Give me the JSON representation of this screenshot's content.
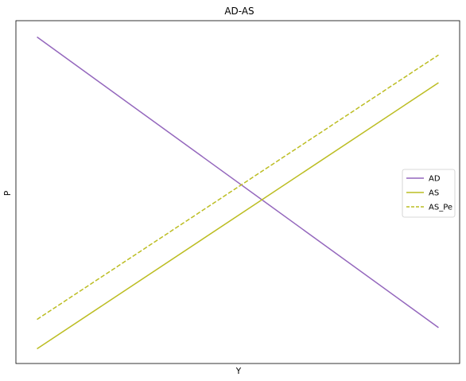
{
  "chart_data": {
    "type": "line",
    "title": "AD-AS",
    "xlabel": "Y",
    "ylabel": "P",
    "xlim": [
      0,
      10.5
    ],
    "ylim": [
      0,
      10.5
    ],
    "grid": false,
    "ticks_shown": false,
    "legend_placement": "center-right",
    "series": [
      {
        "name": "AD",
        "color": "#9467bd",
        "linestyle": "solid",
        "x": [
          0.5,
          10.0
        ],
        "y": [
          10.0,
          1.1
        ]
      },
      {
        "name": "AS",
        "color": "#bcbd22",
        "linestyle": "solid",
        "x": [
          0.5,
          10.0
        ],
        "y": [
          0.45,
          8.6
        ]
      },
      {
        "name": "AS_Pe",
        "color": "#bcbd22",
        "linestyle": "dashed",
        "x": [
          0.5,
          10.0
        ],
        "y": [
          1.35,
          9.45
        ]
      }
    ]
  }
}
